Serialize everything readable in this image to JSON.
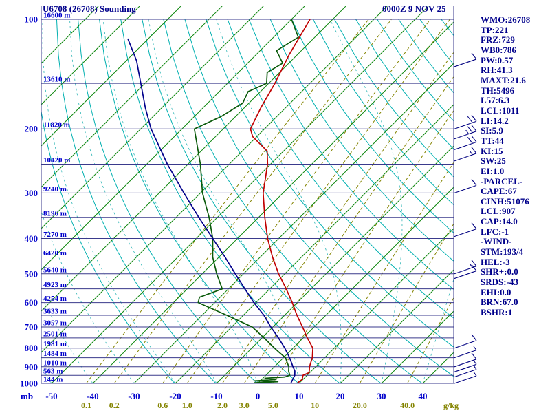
{
  "header": {
    "title": "U6708 (26708) Sounding",
    "datetime": "0000Z 9 NOV 25"
  },
  "panel": {
    "lines": [
      "WMO:26708",
      "TP:221",
      "FRZ:729",
      "WB0:786",
      "PW:0.57",
      "RH:41.3",
      "MAXT:21.6",
      "TH:5496",
      "L57:6.3",
      "LCL:1011",
      "LI:14.2",
      "SI:5.9",
      "TT:44",
      "KI:15",
      "SW:25",
      "EI:1.0",
      "-PARCEL-",
      "CAPE:67",
      "CINH:51076",
      "LCL:907",
      "CAP:14.0",
      "LFC:-1",
      "-WIND-",
      "STM:193/4",
      "HEL:-3",
      "SHR+:0.0",
      "SRDS:-43",
      "EHI:0.0",
      "BRN:67.0",
      "BSHR:1"
    ]
  },
  "colors": {
    "label_blue": "#0000CC",
    "panel_navy": "#00008B",
    "isobar": "#3A3A8C",
    "isotherm": "#118811",
    "dry_adiabat": "#00B0B0",
    "moist_adiabat": "#2FB6B6",
    "mixing_ratio": "#848400",
    "temperature": "#C00000",
    "dewpoint": "#0A5A0A",
    "wet_bulb": "#00008B",
    "wind_barb": "#000080"
  },
  "chart_data": {
    "type": "line",
    "subtype": "skew-t-log-p-sounding",
    "title": "U6708 (26708) Sounding",
    "datetime": "0000Z 9 NOV 25",
    "y_axis": {
      "unit": "mb",
      "scale": "log",
      "ticks": [
        100,
        200,
        300,
        400,
        500,
        600,
        700,
        800,
        900,
        1000
      ],
      "isobar_levels": [
        100,
        150,
        200,
        250,
        300,
        350,
        400,
        450,
        500,
        550,
        600,
        650,
        700,
        750,
        800,
        850,
        900,
        950,
        1000
      ]
    },
    "x_axis": {
      "unit": "C",
      "ticks": [
        -50,
        -40,
        -30,
        -20,
        -10,
        0,
        10,
        20,
        30,
        40
      ],
      "skew_deg": 45
    },
    "mixing_ratio": {
      "unit": "g/kg",
      "values": [
        0.1,
        0.2,
        0.6,
        1.0,
        2.0,
        3.0,
        5.0,
        10,
        20,
        40
      ],
      "labels": [
        "0.1",
        "0.2",
        "0.6",
        "1.0",
        "2.0",
        "3.0",
        "5.0",
        "10",
        "20.0",
        "40.0"
      ]
    },
    "isotherms_C": {
      "start": -130,
      "end": 50,
      "step": 10
    },
    "dry_adiabats_theta_K": {
      "start": 253,
      "end": 453,
      "step": 10
    },
    "moist_adiabats_Tw_C": {
      "start": -60,
      "end": 40,
      "step": 10
    },
    "heights": [
      {
        "p": 100,
        "label": "16600 m"
      },
      {
        "p": 150,
        "label": "13610 m"
      },
      {
        "p": 200,
        "label": "11820 m"
      },
      {
        "p": 250,
        "label": "10420 m"
      },
      {
        "p": 300,
        "label": "9240 m"
      },
      {
        "p": 350,
        "label": "8196 m"
      },
      {
        "p": 400,
        "label": "7270 m"
      },
      {
        "p": 450,
        "label": "6420 m"
      },
      {
        "p": 500,
        "label": "5640 m"
      },
      {
        "p": 550,
        "label": "4923 m"
      },
      {
        "p": 600,
        "label": "4254 m"
      },
      {
        "p": 650,
        "label": "3633 m"
      },
      {
        "p": 700,
        "label": "3057 m"
      },
      {
        "p": 750,
        "label": "2501 m"
      },
      {
        "p": 800,
        "label": "1981 m"
      },
      {
        "p": 850,
        "label": "1484 m"
      },
      {
        "p": 900,
        "label": "1010 m"
      },
      {
        "p": 950,
        "label": "563 m"
      },
      {
        "p": 1000,
        "label": "144 m"
      }
    ],
    "series": [
      {
        "name": "temperature",
        "color_key": "temperature",
        "points": [
          [
            1000,
            9.5
          ],
          [
            975,
            9.8
          ],
          [
            950,
            9.0
          ],
          [
            935,
            9.8
          ],
          [
            925,
            9.5
          ],
          [
            900,
            8.5
          ],
          [
            850,
            7.0
          ],
          [
            800,
            4.8
          ],
          [
            750,
            1.0
          ],
          [
            700,
            -2.8
          ],
          [
            650,
            -7.0
          ],
          [
            600,
            -11.2
          ],
          [
            550,
            -16.0
          ],
          [
            500,
            -21.5
          ],
          [
            450,
            -27.0
          ],
          [
            400,
            -32.7
          ],
          [
            350,
            -38.5
          ],
          [
            300,
            -44.8
          ],
          [
            250,
            -50.7
          ],
          [
            230,
            -54.0
          ],
          [
            210,
            -61.0
          ],
          [
            200,
            -63.4
          ],
          [
            175,
            -66.0
          ],
          [
            150,
            -68.5
          ],
          [
            125,
            -72.0
          ],
          [
            100,
            -75.5
          ]
        ]
      },
      {
        "name": "dewpoint",
        "color_key": "dewpoint",
        "points": [
          [
            1000,
            5.0
          ],
          [
            996,
            -1.0
          ],
          [
            990,
            4.5
          ],
          [
            984,
            -1.5
          ],
          [
            976,
            3.5
          ],
          [
            968,
            0.5
          ],
          [
            960,
            5.0
          ],
          [
            950,
            5.8
          ],
          [
            925,
            4.5
          ],
          [
            900,
            3.5
          ],
          [
            875,
            2.0
          ],
          [
            850,
            0.5
          ],
          [
            825,
            -2.0
          ],
          [
            800,
            -4.5
          ],
          [
            750,
            -9.5
          ],
          [
            700,
            -15.0
          ],
          [
            650,
            -24.0
          ],
          [
            600,
            -34.0
          ],
          [
            580,
            -35.0
          ],
          [
            550,
            -31.5
          ],
          [
            500,
            -36.5
          ],
          [
            450,
            -41.5
          ],
          [
            400,
            -46.0
          ],
          [
            350,
            -52.0
          ],
          [
            300,
            -59.5
          ],
          [
            250,
            -67.0
          ],
          [
            200,
            -77.0
          ],
          [
            185,
            -73.5
          ],
          [
            170,
            -71.5
          ],
          [
            158,
            -73.0
          ],
          [
            150,
            -70.5
          ],
          [
            140,
            -73.0
          ],
          [
            132,
            -71.5
          ],
          [
            122,
            -76.0
          ],
          [
            112,
            -74.0
          ],
          [
            100,
            -80.0
          ]
        ]
      },
      {
        "name": "wet_bulb",
        "color_key": "wet_bulb",
        "points": [
          [
            1000,
            8.0
          ],
          [
            950,
            7.0
          ],
          [
            925,
            6.0
          ],
          [
            900,
            4.5
          ],
          [
            850,
            1.5
          ],
          [
            800,
            -2.0
          ],
          [
            750,
            -6.0
          ],
          [
            700,
            -10.5
          ],
          [
            650,
            -15.0
          ],
          [
            600,
            -20.5
          ],
          [
            550,
            -26.0
          ],
          [
            500,
            -32.0
          ],
          [
            450,
            -38.5
          ],
          [
            400,
            -46.0
          ],
          [
            350,
            -54.5
          ],
          [
            300,
            -64.0
          ],
          [
            250,
            -75.0
          ],
          [
            200,
            -87.5
          ],
          [
            175,
            -94.0
          ],
          [
            150,
            -101.0
          ],
          [
            130,
            -107.5
          ],
          [
            113,
            -115.0
          ]
        ]
      }
    ],
    "wind_barbs": [
      {
        "p": 135,
        "kt": 10
      },
      {
        "p": 200,
        "kt": 20
      },
      {
        "p": 213,
        "kt": 25
      },
      {
        "p": 228,
        "kt": 20
      },
      {
        "p": 245,
        "kt": 15
      },
      {
        "p": 300,
        "kt": 10
      },
      {
        "p": 395,
        "kt": 10
      },
      {
        "p": 500,
        "kt": 15
      },
      {
        "p": 515,
        "kt": 10
      },
      {
        "p": 800,
        "kt": 10
      },
      {
        "p": 850,
        "kt": 5
      },
      {
        "p": 900,
        "kt": 10
      },
      {
        "p": 930,
        "kt": 5
      },
      {
        "p": 960,
        "kt": 5
      },
      {
        "p": 1000,
        "kt": 5
      }
    ]
  }
}
